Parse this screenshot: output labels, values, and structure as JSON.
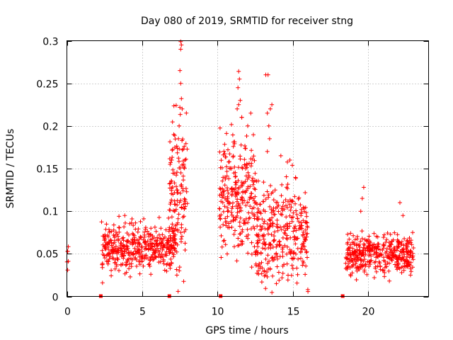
{
  "chart_data": {
    "type": "scatter",
    "title": "Day 080 of 2019, SRMTID for receiver stng",
    "xlabel": "GPS time / hours",
    "ylabel": "SRMTID / TECUs",
    "xlim": [
      0,
      24
    ],
    "ylim": [
      0,
      0.3
    ],
    "x_ticks": [
      0,
      5,
      10,
      15,
      20
    ],
    "x_tick_labels": [
      "0",
      "5",
      "10",
      "15",
      "20"
    ],
    "y_ticks": [
      0,
      0.05,
      0.1,
      0.15,
      0.2,
      0.25,
      0.3
    ],
    "y_tick_labels": [
      "0",
      "0.05",
      "0.1",
      "0.15",
      "0.2",
      "0.25",
      "0.3"
    ],
    "grid": true,
    "marker": "+",
    "series_color": "#ff0000",
    "clusters": [
      {
        "t_start": 0.0,
        "t_end": 0.1,
        "mean": 0.045,
        "spread": 0.008,
        "count": 4
      },
      {
        "t_start": 2.3,
        "t_end": 7.2,
        "mean": 0.058,
        "spread": 0.014,
        "count": 420
      },
      {
        "t_start": 6.8,
        "t_end": 8.0,
        "mean": 0.12,
        "spread": 0.05,
        "count": 140
      },
      {
        "t_start": 10.1,
        "t_end": 12.5,
        "mean": 0.115,
        "spread": 0.035,
        "count": 260
      },
      {
        "t_start": 12.5,
        "t_end": 16.0,
        "mean": 0.075,
        "spread": 0.028,
        "count": 330
      },
      {
        "t_start": 18.5,
        "t_end": 23.0,
        "mean": 0.05,
        "spread": 0.011,
        "count": 400
      }
    ],
    "highlight_points": [
      {
        "x": 0.05,
        "y": 0.031
      },
      {
        "x": 0.05,
        "y": 0.053
      },
      {
        "x": 7.55,
        "y": 0.299
      },
      {
        "x": 7.6,
        "y": 0.295
      },
      {
        "x": 7.55,
        "y": 0.29
      },
      {
        "x": 7.5,
        "y": 0.265
      },
      {
        "x": 7.55,
        "y": 0.25
      },
      {
        "x": 7.6,
        "y": 0.232
      },
      {
        "x": 7.65,
        "y": 0.22
      },
      {
        "x": 7.45,
        "y": 0.2
      },
      {
        "x": 7.4,
        "y": 0.185
      },
      {
        "x": 6.95,
        "y": 0.16
      },
      {
        "x": 7.3,
        "y": 0.025
      },
      {
        "x": 11.4,
        "y": 0.264
      },
      {
        "x": 11.45,
        "y": 0.255
      },
      {
        "x": 11.35,
        "y": 0.245
      },
      {
        "x": 11.5,
        "y": 0.23
      },
      {
        "x": 11.4,
        "y": 0.225
      },
      {
        "x": 11.3,
        "y": 0.22
      },
      {
        "x": 11.6,
        "y": 0.21
      },
      {
        "x": 12.0,
        "y": 0.2
      },
      {
        "x": 12.2,
        "y": 0.215
      },
      {
        "x": 13.2,
        "y": 0.26
      },
      {
        "x": 13.35,
        "y": 0.26
      },
      {
        "x": 13.5,
        "y": 0.22
      },
      {
        "x": 13.6,
        "y": 0.225
      },
      {
        "x": 13.3,
        "y": 0.215
      },
      {
        "x": 13.4,
        "y": 0.2
      },
      {
        "x": 13.45,
        "y": 0.185
      },
      {
        "x": 13.3,
        "y": 0.17
      },
      {
        "x": 14.2,
        "y": 0.165
      },
      {
        "x": 14.8,
        "y": 0.16
      },
      {
        "x": 13.2,
        "y": 0.025
      },
      {
        "x": 13.9,
        "y": 0.015
      },
      {
        "x": 12.7,
        "y": 0.03
      },
      {
        "x": 10.3,
        "y": 0.058
      },
      {
        "x": 10.4,
        "y": 0.065
      },
      {
        "x": 19.7,
        "y": 0.128
      },
      {
        "x": 19.6,
        "y": 0.115
      },
      {
        "x": 22.1,
        "y": 0.11
      },
      {
        "x": 19.5,
        "y": 0.1
      },
      {
        "x": 22.3,
        "y": 0.095
      },
      {
        "x": 20.4,
        "y": 0.022
      },
      {
        "x": 21.4,
        "y": 0.018
      },
      {
        "x": 22.8,
        "y": 0.025
      }
    ],
    "axis_markers_x": [
      2.25,
      6.8,
      10.2,
      18.3
    ]
  }
}
